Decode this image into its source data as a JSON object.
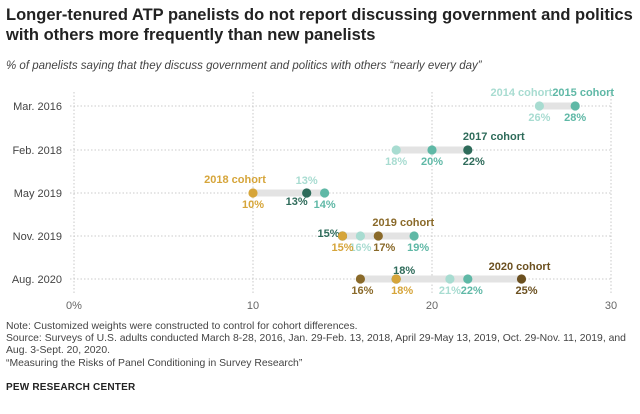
{
  "title": "Longer-tenured ATP panelists do not report discussing government and politics with others more frequently than new panelists",
  "subtitle": "% of panelists saying that they discuss government and politics with others “nearly every day”",
  "notes": [
    "Note: Customized weights were constructed to control for cohort differences.",
    "Source: Surveys of U.S. adults conducted March 8-28, 2016, Jan. 29-Feb. 13, 2018, April 29-May 13, 2019, Oct. 29-Nov. 11, 2019, and Aug. 3-Sept. 20, 2020.",
    "“Measuring the Risks of Panel Conditioning in Survey Research”"
  ],
  "brand": "PEW RESEARCH CENTER",
  "colors": {
    "2014 cohort": "#a8dcd1",
    "2015 cohort": "#5fb8a6",
    "2017 cohort": "#2e6b5a",
    "2018 cohort": "#d6a53a",
    "2019 cohort": "#8a6a2a",
    "2020 cohort": "#6b5020",
    "range_bar": "#e3e3e3",
    "gridline": "#bbbbbb"
  },
  "chart_data": {
    "type": "dot",
    "x_ticks": [
      "0%",
      "10",
      "20",
      "30"
    ],
    "xlim": [
      0,
      30
    ],
    "grid": true,
    "categories": [
      "Mar. 2016",
      "Feb. 2018",
      "May 2019",
      "Nov. 2019",
      "Aug. 2020"
    ],
    "series": [
      {
        "name": "2014 cohort",
        "values": [
          26,
          18,
          13,
          16,
          21
        ]
      },
      {
        "name": "2015 cohort",
        "values": [
          28,
          20,
          14,
          19,
          22
        ]
      },
      {
        "name": "2017 cohort",
        "values": [
          null,
          22,
          13,
          15,
          18
        ]
      },
      {
        "name": "2018 cohort",
        "values": [
          null,
          null,
          10,
          15,
          18
        ]
      },
      {
        "name": "2019 cohort",
        "values": [
          null,
          null,
          null,
          17,
          16
        ]
      },
      {
        "name": "2020 cohort",
        "values": [
          null,
          null,
          null,
          null,
          25
        ]
      }
    ],
    "data_labels": [
      [
        "26%",
        "28%",
        null,
        null,
        null,
        null
      ],
      [
        "18%",
        "20%",
        "22%",
        null,
        null,
        null
      ],
      [
        "13%",
        "14%",
        "13%",
        "10%",
        null,
        null
      ],
      [
        "16%",
        "19%",
        "15%",
        "15%",
        "17%",
        null
      ],
      [
        "21%",
        "22%",
        "18%",
        "18%",
        "16%",
        "25%"
      ]
    ],
    "series_labels": [
      {
        "series": "2014 cohort",
        "category": "Mar. 2016"
      },
      {
        "series": "2015 cohort",
        "category": "Mar. 2016"
      },
      {
        "series": "2017 cohort",
        "category": "Feb. 2018"
      },
      {
        "series": "2018 cohort",
        "category": "May 2019"
      },
      {
        "series": "2019 cohort",
        "category": "Nov. 2019"
      },
      {
        "series": "2020 cohort",
        "category": "Aug. 2020"
      }
    ]
  }
}
